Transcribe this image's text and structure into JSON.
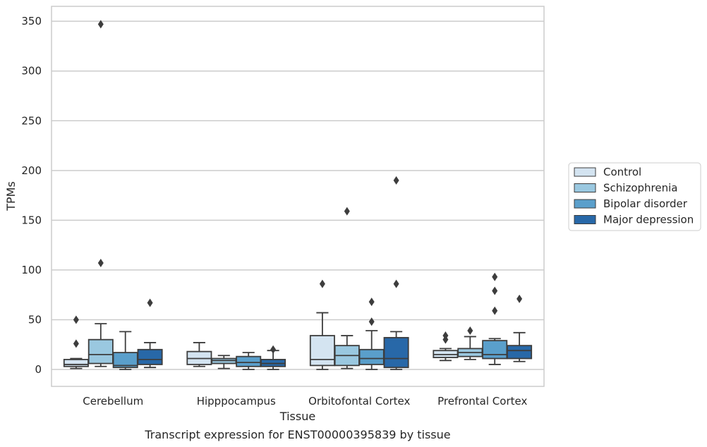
{
  "caption": "Transcript expression for ENST00000395839 by tissue",
  "chart_data": {
    "type": "box",
    "title": "",
    "xlabel": "Tissue",
    "ylabel": "TPMs",
    "ylim": [
      -17,
      365
    ],
    "yticks": [
      0,
      50,
      100,
      150,
      200,
      250,
      300,
      350
    ],
    "grid": "horizontal",
    "legend_position": "right",
    "categories": [
      "Cerebellum",
      "Hipppocampus",
      "Orbitofontal Cortex",
      "Prefrontal Cortex"
    ],
    "series": [
      {
        "name": "Control",
        "color": "#d4e4f1",
        "boxes": [
          {
            "whisker_low": 1,
            "q1": 3,
            "median": 5,
            "q3": 10,
            "whisker_high": 11,
            "outliers": [
              26,
              50
            ]
          },
          {
            "whisker_low": 3,
            "q1": 5,
            "median": 11,
            "q3": 18,
            "whisker_high": 27,
            "outliers": []
          },
          {
            "whisker_low": 0,
            "q1": 4,
            "median": 10,
            "q3": 34,
            "whisker_high": 57,
            "outliers": [
              86
            ]
          },
          {
            "whisker_low": 9,
            "q1": 12,
            "median": 15,
            "q3": 19,
            "whisker_high": 21,
            "outliers": [
              30,
              34
            ]
          }
        ]
      },
      {
        "name": "Schizophrenia",
        "color": "#9ac8e0",
        "boxes": [
          {
            "whisker_low": 3,
            "q1": 6,
            "median": 15,
            "q3": 30,
            "whisker_high": 46,
            "outliers": [
              107,
              347
            ]
          },
          {
            "whisker_low": 1,
            "q1": 6,
            "median": 9,
            "q3": 11,
            "whisker_high": 14,
            "outliers": []
          },
          {
            "whisker_low": 1,
            "q1": 4,
            "median": 14,
            "q3": 24,
            "whisker_high": 34,
            "outliers": [
              159
            ]
          },
          {
            "whisker_low": 10,
            "q1": 13,
            "median": 17,
            "q3": 21,
            "whisker_high": 33,
            "outliers": [
              39
            ]
          }
        ]
      },
      {
        "name": "Bipolar disorder",
        "color": "#5a9fcb",
        "boxes": [
          {
            "whisker_low": 0,
            "q1": 2,
            "median": 4,
            "q3": 17,
            "whisker_high": 38,
            "outliers": []
          },
          {
            "whisker_low": 0,
            "q1": 3,
            "median": 7,
            "q3": 13,
            "whisker_high": 17,
            "outliers": []
          },
          {
            "whisker_low": 0,
            "q1": 5,
            "median": 11,
            "q3": 20,
            "whisker_high": 39,
            "outliers": [
              48,
              68
            ]
          },
          {
            "whisker_low": 5,
            "q1": 11,
            "median": 15,
            "q3": 29,
            "whisker_high": 31,
            "outliers": [
              59,
              79,
              93
            ]
          }
        ]
      },
      {
        "name": "Major depression",
        "color": "#2868a8",
        "boxes": [
          {
            "whisker_low": 2,
            "q1": 5,
            "median": 10,
            "q3": 20,
            "whisker_high": 27,
            "outliers": [
              67
            ]
          },
          {
            "whisker_low": 0,
            "q1": 3,
            "median": 6,
            "q3": 10,
            "whisker_high": 19,
            "outliers": [
              20
            ]
          },
          {
            "whisker_low": 0,
            "q1": 2,
            "median": 11,
            "q3": 32,
            "whisker_high": 38,
            "outliers": [
              86,
              190
            ]
          },
          {
            "whisker_low": 8,
            "q1": 11,
            "median": 19,
            "q3": 24,
            "whisker_high": 37,
            "outliers": [
              71
            ]
          }
        ]
      }
    ]
  }
}
